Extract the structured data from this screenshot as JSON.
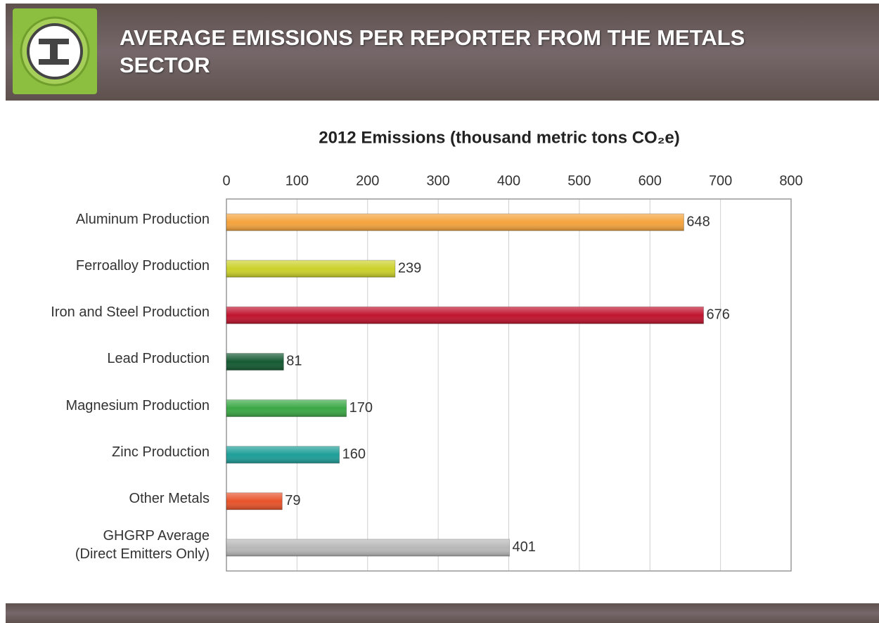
{
  "header": {
    "title": "AVERAGE EMISSIONS PER REPORTER FROM THE METALS SECTOR"
  },
  "chart_data": {
    "type": "bar",
    "orientation": "horizontal",
    "title": "2012 Emissions (thousand metric tons CO₂e)",
    "categories": [
      "Aluminum Production",
      "Ferroalloy Production",
      "Iron and Steel Production",
      "Lead Production",
      "Magnesium Production",
      "Zinc Production",
      "Other Metals",
      "GHGRP Average\n(Direct Emitters Only)"
    ],
    "values": [
      648,
      239,
      676,
      81,
      170,
      160,
      79,
      401
    ],
    "colors": [
      "#f5a33c",
      "#cbd12a",
      "#c0142e",
      "#145a32",
      "#3aa845",
      "#1e9e98",
      "#e8532a",
      "#b8b8b8"
    ],
    "xlim": [
      0,
      800
    ],
    "xticks": [
      0,
      100,
      200,
      300,
      400,
      500,
      600,
      700,
      800
    ],
    "grid": true
  }
}
